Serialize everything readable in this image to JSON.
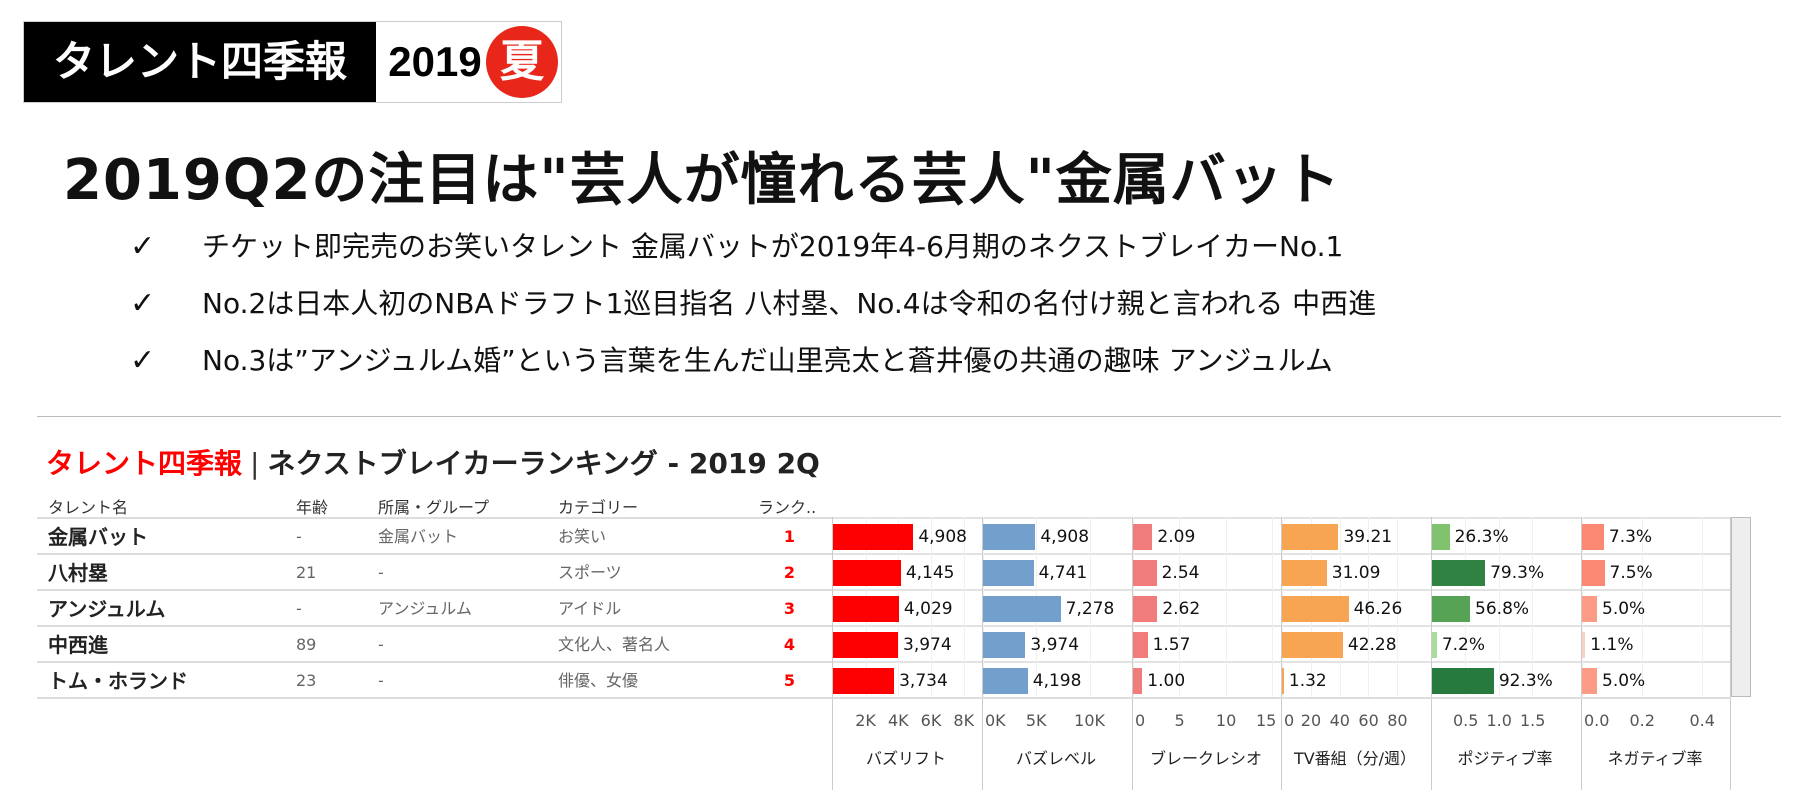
{
  "logo": {
    "name": "タレント四季報",
    "year": "2019",
    "season": "夏"
  },
  "headline": "2019Q2の注目は\"芸人が憧れる芸人\"金属バット",
  "bullets": [
    {
      "mark": "✓",
      "text": "チケット即完売のお笑いタレント 金属バットが2019年4-6月期のネクストブレイカーNo.1"
    },
    {
      "mark": "✓",
      "text": "No.2は日本人初のNBAドラフト1巡目指名 八村塁、No.4は令和の名付け親と言われる 中西進"
    },
    {
      "mark": "✓",
      "text": "No.3は”アンジュルム婚”という言葉を生んだ山里亮太と蒼井優の共通の趣味 アンジュルム"
    }
  ],
  "dashboard": {
    "title_brand": "タレント四季報",
    "title_sep": "|",
    "title_main": "ネクストブレイカーランキング - 2019 2Q"
  },
  "table": {
    "headers": {
      "name": "タレント名",
      "age": "年齢",
      "group": "所属・グループ",
      "category": "カテゴリー",
      "rank": "ランク.."
    },
    "rows": [
      {
        "name": "金属バット",
        "age": "-",
        "group": "金属バット",
        "category": "お笑い",
        "rank": "1"
      },
      {
        "name": "八村塁",
        "age": "21",
        "group": "-",
        "category": "スポーツ",
        "rank": "2"
      },
      {
        "name": "アンジュルム",
        "age": "-",
        "group": "アンジュルム",
        "category": "アイドル",
        "rank": "3"
      },
      {
        "name": "中西進",
        "age": "89",
        "group": "-",
        "category": "文化人、著名人",
        "rank": "4"
      },
      {
        "name": "トム・ホランド",
        "age": "23",
        "group": "-",
        "category": "俳優、女優",
        "rank": "5"
      }
    ]
  },
  "chart_data": {
    "type": "bar",
    "orientation": "horizontal",
    "categories": [
      "金属バット",
      "八村塁",
      "アンジュルム",
      "中西進",
      "トム・ホランド"
    ],
    "series": [
      {
        "name": "バズリフト",
        "values": [
          4908,
          4145,
          4029,
          3974,
          3734
        ],
        "labels": [
          "4,908",
          "4,145",
          "4,029",
          "3,974",
          "3,734"
        ],
        "ticks": [
          2000,
          4000,
          6000,
          8000
        ],
        "tick_labels": [
          "2K",
          "4K",
          "6K",
          "8K"
        ],
        "xlim": [
          0,
          8800
        ],
        "colors": [
          "#ff0000",
          "#ff0000",
          "#ff0000",
          "#ff0000",
          "#ff0000"
        ]
      },
      {
        "name": "バズレベル",
        "values": [
          4908,
          4741,
          7278,
          3974,
          4198
        ],
        "labels": [
          "4,908",
          "4,741",
          "7,278",
          "3,974",
          "4,198"
        ],
        "ticks": [
          0,
          5000,
          10000
        ],
        "tick_labels": [
          "0K",
          "5K",
          "10K"
        ],
        "xlim": [
          0,
          13500
        ],
        "colors": [
          "#729fcb",
          "#729fcb",
          "#729fcb",
          "#729fcb",
          "#729fcb"
        ]
      },
      {
        "name": "ブレークレシオ",
        "values": [
          2.09,
          2.54,
          2.62,
          1.57,
          1.0
        ],
        "labels": [
          "2.09",
          "2.54",
          "2.62",
          "1.57",
          "1.00"
        ],
        "ticks": [
          0,
          5,
          10,
          15
        ],
        "tick_labels": [
          "0",
          "5",
          "10",
          "15"
        ],
        "xlim": [
          0,
          15.5
        ],
        "colors": [
          "#f07c7c",
          "#f07c7c",
          "#f07c7c",
          "#f07c7c",
          "#f07c7c"
        ]
      },
      {
        "name": "TV番組（分/週）",
        "values": [
          39.21,
          31.09,
          46.26,
          42.28,
          1.32
        ],
        "labels": [
          "39.21",
          "31.09",
          "46.26",
          "42.28",
          "1.32"
        ],
        "ticks": [
          0,
          20,
          40,
          60,
          80
        ],
        "tick_labels": [
          "0",
          "20",
          "40",
          "60",
          "80"
        ],
        "xlim": [
          0,
          100
        ],
        "colors": [
          "#f8a553",
          "#f8a553",
          "#f8a553",
          "#f8a553",
          "#f8a553"
        ]
      },
      {
        "name": "ポジティブ率",
        "values": [
          0.263,
          0.793,
          0.568,
          0.072,
          0.923
        ],
        "labels": [
          "26.3%",
          "79.3%",
          "56.8%",
          "7.2%",
          "92.3%"
        ],
        "ticks": [
          0.5,
          1.0,
          1.5
        ],
        "tick_labels": [
          "0.5",
          "1.0",
          "1.5"
        ],
        "xlim": [
          0,
          2.15
        ],
        "colors": [
          "#80c26e",
          "#2f8242",
          "#56a356",
          "#a8dc9c",
          "#267a3d"
        ]
      },
      {
        "name": "ネガティブ率",
        "values": [
          0.073,
          0.075,
          0.05,
          0.011,
          0.05
        ],
        "labels": [
          "7.3%",
          "7.5%",
          "5.0%",
          "1.1%",
          "5.0%"
        ],
        "ticks": [
          0.0,
          0.2,
          0.4
        ],
        "tick_labels": [
          "0.0",
          "0.2",
          "0.4"
        ],
        "xlim": [
          0,
          0.48
        ],
        "colors": [
          "#fb8872",
          "#fb8872",
          "#fc9c86",
          "#fdd0c4",
          "#fc9c86"
        ]
      }
    ]
  }
}
